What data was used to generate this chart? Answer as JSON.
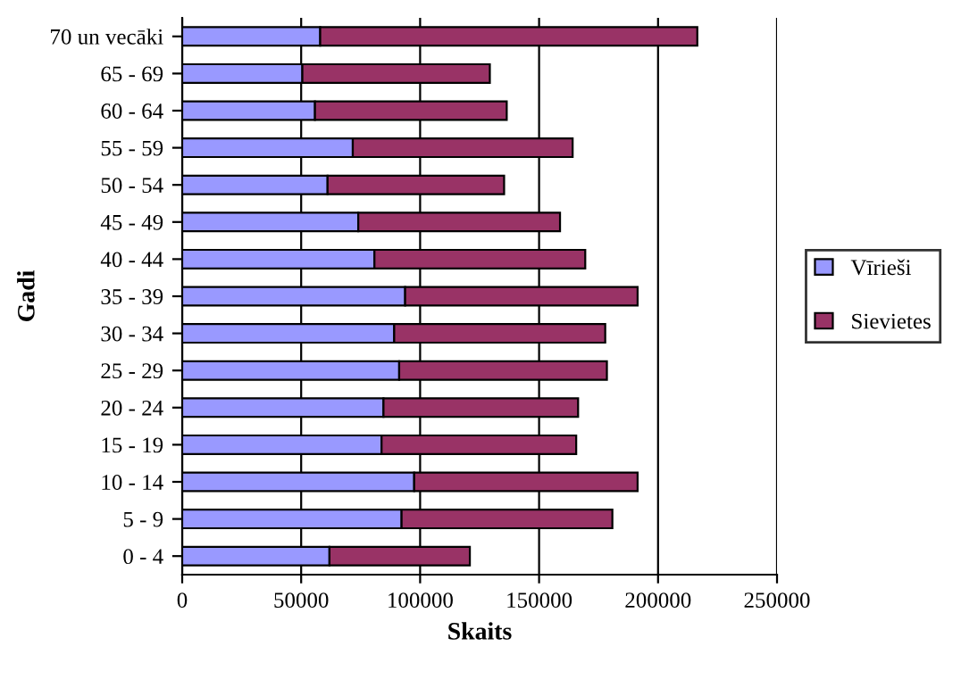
{
  "chart_data": {
    "type": "bar",
    "orientation": "horizontal",
    "stacked": true,
    "xlabel": "Skaits",
    "ylabel": "Gadi",
    "categories": [
      "70 un vecāki",
      "65 - 69",
      "60 - 64",
      "55 - 59",
      "50 - 54",
      "45 - 49",
      "40 - 44",
      "35 - 39",
      "30 - 34",
      "25 - 29",
      "20 - 24",
      "15 - 19",
      "10 - 14",
      "5 - 9",
      "0 - 4"
    ],
    "series": [
      {
        "name": "Vīrieši",
        "color": "#9999ff",
        "values": [
          58000,
          50500,
          55800,
          71700,
          61100,
          74000,
          80800,
          93700,
          89100,
          91200,
          84600,
          83800,
          97500,
          92200,
          61900
        ]
      },
      {
        "name": "Sievietes",
        "color": "#993366",
        "values": [
          158500,
          78800,
          80600,
          92400,
          74200,
          84800,
          88600,
          97700,
          88700,
          87300,
          81800,
          81800,
          93900,
          88600,
          59000
        ]
      }
    ],
    "xlim": [
      0,
      250000
    ],
    "xticks": [
      0,
      50000,
      100000,
      150000,
      200000,
      250000
    ],
    "grid": "x",
    "legend": "right"
  }
}
